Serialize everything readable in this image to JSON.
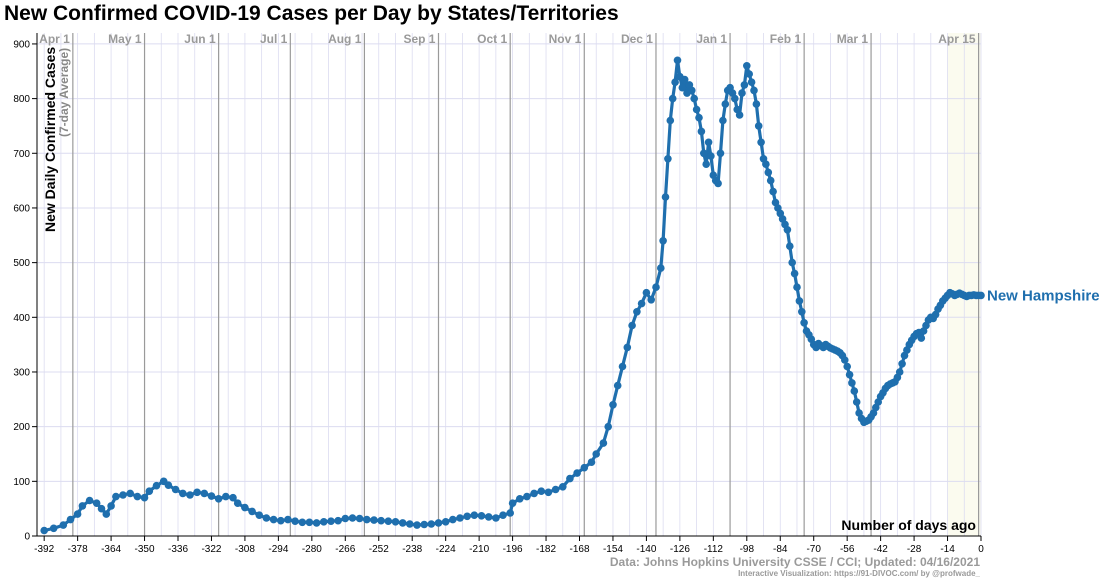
{
  "title": "New Confirmed COVID-19 Cases per Day by States/Territories",
  "credits": {
    "line1": "Data: Johns Hopkins University CSSE / CCI; Updated: 04/16/2021",
    "line2": "Interactive Visualization: https://91-DIVOC.com/ by @profwade_"
  },
  "colors": {
    "series": "#1f6fae",
    "grid": "#dcdcf0",
    "month_line": "#9a9a9a",
    "month_label": "#9a9a9a",
    "highlight_bg": "#fbfbef"
  },
  "chart_data": {
    "type": "line",
    "title": "New Confirmed COVID-19 Cases per Day by States/Territories",
    "ylabel": "New Daily Confirmed Cases",
    "ylabel_sub": "(7-day Average)",
    "xlabel": "Number of days ago",
    "xlim": [
      -395,
      0
    ],
    "ylim": [
      0,
      920
    ],
    "x_ticks": [
      -392,
      -378,
      -364,
      -350,
      -336,
      -322,
      -308,
      -294,
      -280,
      -266,
      -252,
      -238,
      -224,
      -210,
      -196,
      -182,
      -168,
      -154,
      -140,
      -126,
      -112,
      -98,
      -84,
      -70,
      -56,
      -42,
      -28,
      -14,
      0
    ],
    "y_ticks": [
      0,
      100,
      200,
      300,
      400,
      500,
      600,
      700,
      800,
      900
    ],
    "month_markers": [
      {
        "label": "Apr 1",
        "day": -380
      },
      {
        "label": "May 1",
        "day": -350
      },
      {
        "label": "Jun 1",
        "day": -319
      },
      {
        "label": "Jul 1",
        "day": -289
      },
      {
        "label": "Aug 1",
        "day": -258
      },
      {
        "label": "Sep 1",
        "day": -227
      },
      {
        "label": "Oct 1",
        "day": -197
      },
      {
        "label": "Nov 1",
        "day": -166
      },
      {
        "label": "Dec 1",
        "day": -136
      },
      {
        "label": "Jan 1",
        "day": -105
      },
      {
        "label": "Feb 1",
        "day": -74
      },
      {
        "label": "Mar 1",
        "day": -46
      },
      {
        "label": "Apr 15",
        "day": -1
      }
    ],
    "series": [
      {
        "name": "New Hampshire",
        "points": [
          [
            -392,
            10
          ],
          [
            -388,
            14
          ],
          [
            -384,
            20
          ],
          [
            -381,
            30
          ],
          [
            -378,
            40
          ],
          [
            -376,
            55
          ],
          [
            -373,
            65
          ],
          [
            -370,
            60
          ],
          [
            -368,
            50
          ],
          [
            -366,
            40
          ],
          [
            -364,
            55
          ],
          [
            -362,
            72
          ],
          [
            -359,
            75
          ],
          [
            -356,
            78
          ],
          [
            -353,
            72
          ],
          [
            -350,
            70
          ],
          [
            -348,
            82
          ],
          [
            -345,
            92
          ],
          [
            -342,
            100
          ],
          [
            -340,
            93
          ],
          [
            -337,
            85
          ],
          [
            -334,
            78
          ],
          [
            -331,
            75
          ],
          [
            -328,
            80
          ],
          [
            -325,
            78
          ],
          [
            -322,
            73
          ],
          [
            -319,
            68
          ],
          [
            -316,
            72
          ],
          [
            -313,
            70
          ],
          [
            -311,
            60
          ],
          [
            -308,
            52
          ],
          [
            -305,
            45
          ],
          [
            -302,
            38
          ],
          [
            -299,
            33
          ],
          [
            -296,
            30
          ],
          [
            -293,
            28
          ],
          [
            -290,
            30
          ],
          [
            -287,
            27
          ],
          [
            -284,
            25
          ],
          [
            -281,
            25
          ],
          [
            -278,
            24
          ],
          [
            -275,
            26
          ],
          [
            -272,
            27
          ],
          [
            -269,
            28
          ],
          [
            -266,
            32
          ],
          [
            -263,
            33
          ],
          [
            -260,
            32
          ],
          [
            -257,
            30
          ],
          [
            -254,
            29
          ],
          [
            -251,
            28
          ],
          [
            -248,
            27
          ],
          [
            -245,
            26
          ],
          [
            -242,
            24
          ],
          [
            -239,
            22
          ],
          [
            -236,
            20
          ],
          [
            -233,
            21
          ],
          [
            -230,
            22
          ],
          [
            -227,
            24
          ],
          [
            -224,
            26
          ],
          [
            -221,
            30
          ],
          [
            -218,
            33
          ],
          [
            -215,
            36
          ],
          [
            -212,
            38
          ],
          [
            -209,
            37
          ],
          [
            -206,
            35
          ],
          [
            -203,
            33
          ],
          [
            -200,
            38
          ],
          [
            -197,
            42
          ],
          [
            -196,
            60
          ],
          [
            -193,
            68
          ],
          [
            -190,
            72
          ],
          [
            -187,
            78
          ],
          [
            -184,
            82
          ],
          [
            -181,
            80
          ],
          [
            -178,
            85
          ],
          [
            -175,
            90
          ],
          [
            -172,
            105
          ],
          [
            -169,
            115
          ],
          [
            -166,
            125
          ],
          [
            -163,
            135
          ],
          [
            -161,
            150
          ],
          [
            -158,
            170
          ],
          [
            -156,
            200
          ],
          [
            -154,
            240
          ],
          [
            -152,
            275
          ],
          [
            -150,
            310
          ],
          [
            -148,
            345
          ],
          [
            -146,
            385
          ],
          [
            -144,
            410
          ],
          [
            -142,
            425
          ],
          [
            -140,
            445
          ],
          [
            -138,
            432
          ],
          [
            -136,
            455
          ],
          [
            -134,
            490
          ],
          [
            -133,
            540
          ],
          [
            -132,
            620
          ],
          [
            -131,
            690
          ],
          [
            -130,
            760
          ],
          [
            -129,
            800
          ],
          [
            -128,
            830
          ],
          [
            -127,
            870
          ],
          [
            -126,
            840
          ],
          [
            -125,
            820
          ],
          [
            -124,
            835
          ],
          [
            -123,
            810
          ],
          [
            -122,
            825
          ],
          [
            -121,
            815
          ],
          [
            -120,
            800
          ],
          [
            -119,
            780
          ],
          [
            -118,
            765
          ],
          [
            -117,
            740
          ],
          [
            -116,
            700
          ],
          [
            -115,
            680
          ],
          [
            -114,
            720
          ],
          [
            -113,
            695
          ],
          [
            -112,
            660
          ],
          [
            -111,
            650
          ],
          [
            -110,
            645
          ],
          [
            -109,
            700
          ],
          [
            -108,
            760
          ],
          [
            -107,
            790
          ],
          [
            -106,
            815
          ],
          [
            -105,
            820
          ],
          [
            -104,
            810
          ],
          [
            -103,
            800
          ],
          [
            -102,
            780
          ],
          [
            -101,
            770
          ],
          [
            -100,
            810
          ],
          [
            -99,
            825
          ],
          [
            -98,
            860
          ],
          [
            -97,
            845
          ],
          [
            -96,
            830
          ],
          [
            -95,
            815
          ],
          [
            -94,
            790
          ],
          [
            -93,
            750
          ],
          [
            -92,
            720
          ],
          [
            -91,
            690
          ],
          [
            -90,
            680
          ],
          [
            -89,
            665
          ],
          [
            -88,
            650
          ],
          [
            -87,
            630
          ],
          [
            -86,
            610
          ],
          [
            -85,
            600
          ],
          [
            -84,
            590
          ],
          [
            -83,
            580
          ],
          [
            -82,
            570
          ],
          [
            -81,
            560
          ],
          [
            -80,
            530
          ],
          [
            -79,
            500
          ],
          [
            -78,
            480
          ],
          [
            -77,
            455
          ],
          [
            -76,
            430
          ],
          [
            -75,
            410
          ],
          [
            -74,
            390
          ],
          [
            -73,
            375
          ],
          [
            -72,
            368
          ],
          [
            -71,
            360
          ],
          [
            -70,
            350
          ],
          [
            -69,
            345
          ],
          [
            -68,
            352
          ],
          [
            -67,
            348
          ],
          [
            -66,
            345
          ],
          [
            -65,
            350
          ],
          [
            -64,
            347
          ],
          [
            -63,
            344
          ],
          [
            -62,
            342
          ],
          [
            -61,
            340
          ],
          [
            -60,
            338
          ],
          [
            -59,
            335
          ],
          [
            -58,
            330
          ],
          [
            -57,
            322
          ],
          [
            -56,
            310
          ],
          [
            -55,
            295
          ],
          [
            -54,
            280
          ],
          [
            -53,
            265
          ],
          [
            -52,
            245
          ],
          [
            -51,
            225
          ],
          [
            -50,
            215
          ],
          [
            -49,
            208
          ],
          [
            -48,
            210
          ],
          [
            -47,
            212
          ],
          [
            -46,
            218
          ],
          [
            -45,
            225
          ],
          [
            -44,
            235
          ],
          [
            -43,
            245
          ],
          [
            -42,
            255
          ],
          [
            -41,
            262
          ],
          [
            -40,
            270
          ],
          [
            -39,
            275
          ],
          [
            -38,
            278
          ],
          [
            -37,
            280
          ],
          [
            -36,
            282
          ],
          [
            -35,
            290
          ],
          [
            -34,
            300
          ],
          [
            -33,
            315
          ],
          [
            -32,
            330
          ],
          [
            -31,
            340
          ],
          [
            -30,
            350
          ],
          [
            -29,
            358
          ],
          [
            -28,
            365
          ],
          [
            -27,
            370
          ],
          [
            -26,
            372
          ],
          [
            -25,
            362
          ],
          [
            -24,
            375
          ],
          [
            -23,
            385
          ],
          [
            -22,
            395
          ],
          [
            -21,
            400
          ],
          [
            -20,
            398
          ],
          [
            -19,
            405
          ],
          [
            -18,
            415
          ],
          [
            -17,
            422
          ],
          [
            -16,
            430
          ],
          [
            -15,
            435
          ],
          [
            -14,
            440
          ],
          [
            -13,
            445
          ],
          [
            -12,
            443
          ],
          [
            -11,
            440
          ],
          [
            -10,
            442
          ],
          [
            -9,
            444
          ],
          [
            -8,
            442
          ],
          [
            -7,
            440
          ],
          [
            -6,
            438
          ],
          [
            -5,
            440
          ],
          [
            -4,
            440
          ],
          [
            -3,
            441
          ],
          [
            -2,
            440
          ],
          [
            -1,
            440
          ],
          [
            0,
            440
          ]
        ]
      }
    ]
  }
}
